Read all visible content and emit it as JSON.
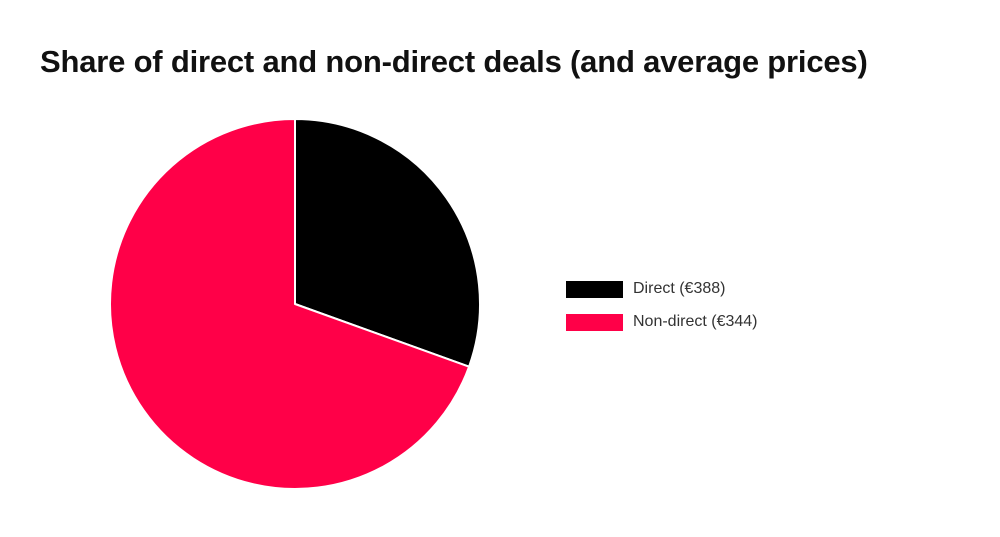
{
  "chart_data": {
    "type": "pie",
    "title": "Share of direct and non-direct deals (and average prices)",
    "slices": [
      {
        "label": "Direct (€388)",
        "value": 30.5,
        "color": "#000000"
      },
      {
        "label": "Non-direct (€344)",
        "value": 69.5,
        "color": "#ff0048"
      }
    ],
    "legend_position": "right"
  }
}
